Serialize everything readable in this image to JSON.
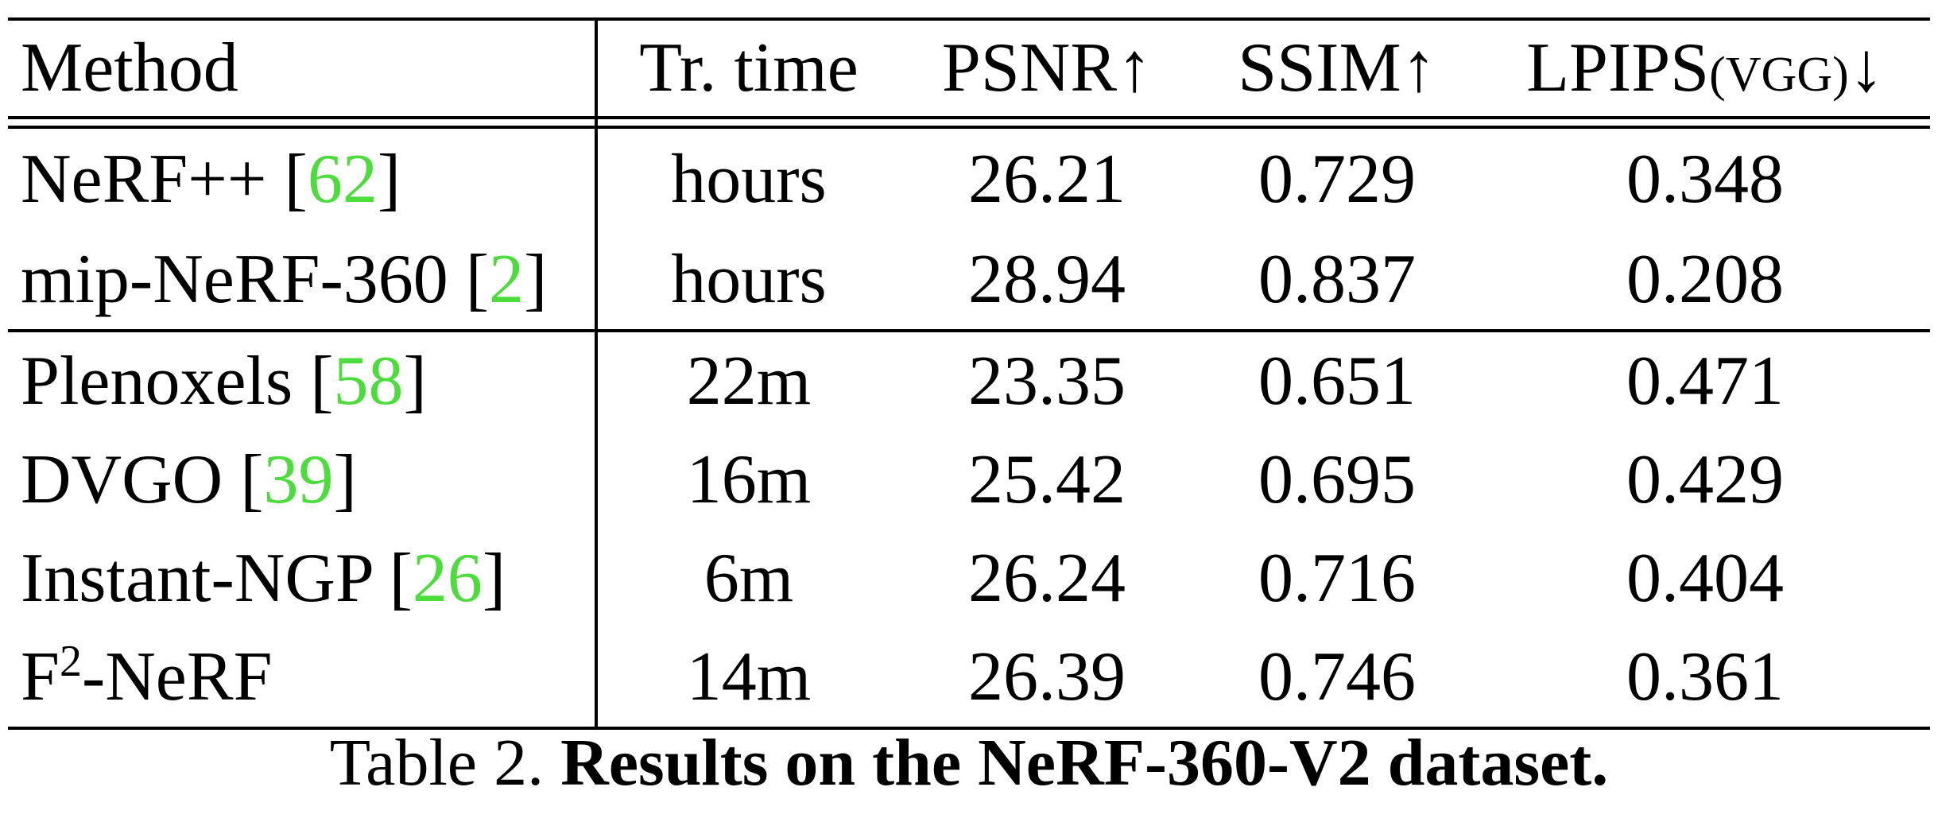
{
  "table": {
    "headers": {
      "method": "Method",
      "time": "Tr. time",
      "psnr": "PSNR",
      "psnr_arrow": "↑",
      "ssim": "SSIM",
      "ssim_arrow": "↑",
      "lpips": "LPIPS",
      "lpips_sub": "(VGG)",
      "lpips_arrow": "↓"
    },
    "rows": [
      {
        "name": "NeRF++ ",
        "lb": "[",
        "cite": "62",
        "rb": "]",
        "time": "hours",
        "psnr": "26.21",
        "ssim": "0.729",
        "lpips": "0.348"
      },
      {
        "name": "mip-NeRF-360 ",
        "lb": "[",
        "cite": "2",
        "rb": "]",
        "time": "hours",
        "psnr": "28.94",
        "ssim": "0.837",
        "lpips": "0.208"
      },
      {
        "name": "Plenoxels ",
        "lb": "[",
        "cite": "58",
        "rb": "]",
        "time": "22m",
        "psnr": "23.35",
        "ssim": "0.651",
        "lpips": "0.471"
      },
      {
        "name": "DVGO ",
        "lb": "[",
        "cite": "39",
        "rb": "]",
        "time": "16m",
        "psnr": "25.42",
        "ssim": "0.695",
        "lpips": "0.429"
      },
      {
        "name": "Instant-NGP ",
        "lb": "[",
        "cite": "26",
        "rb": "]",
        "time": "6m",
        "psnr": "26.24",
        "ssim": "0.716",
        "lpips": "0.404"
      },
      {
        "name_base": "F",
        "name_sup": "2",
        "name_rest": "-NeRF",
        "time": "14m",
        "psnr": "26.39",
        "ssim": "0.746",
        "lpips": "0.361"
      }
    ]
  },
  "caption": {
    "label": "Table 2. ",
    "title": "Results on the NeRF-360-V2 dataset."
  },
  "colors": {
    "citation": "#4cdc3c",
    "text": "#000000",
    "rule": "#000000"
  }
}
